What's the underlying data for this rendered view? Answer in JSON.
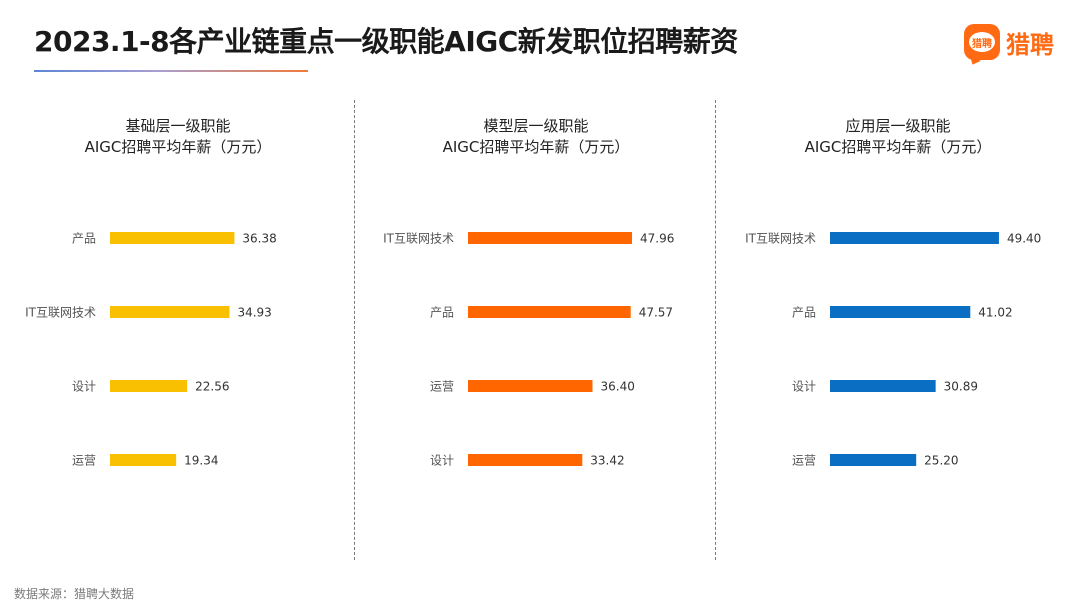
{
  "title": "2023.1-8各产业链重点一级职能AIGC新发职位招聘薪资",
  "brand": {
    "logo_text": "猎聘",
    "name": "猎聘",
    "color": "#ff6a13"
  },
  "source": "数据来源：猎聘大数据",
  "chart_data": [
    {
      "type": "bar",
      "orientation": "horizontal",
      "title_line1": "基础层一级职能",
      "title_line2": "AIGC招聘平均年薪（万元）",
      "color": "#f8c000",
      "categories": [
        "产品",
        "IT互联网技术",
        "设计",
        "运营"
      ],
      "values": [
        36.38,
        34.93,
        22.56,
        19.34
      ],
      "value_labels": [
        "36.38",
        "34.93",
        "22.56",
        "19.34"
      ],
      "grid": false,
      "legend": "none"
    },
    {
      "type": "bar",
      "orientation": "horizontal",
      "title_line1": "模型层一级职能",
      "title_line2": "AIGC招聘平均年薪（万元）",
      "color": "#ff6600",
      "categories": [
        "IT互联网技术",
        "产品",
        "运营",
        "设计"
      ],
      "values": [
        47.96,
        47.57,
        36.4,
        33.42
      ],
      "value_labels": [
        "47.96",
        "47.57",
        "36.40",
        "33.42"
      ],
      "grid": false,
      "legend": "none"
    },
    {
      "type": "bar",
      "orientation": "horizontal",
      "title_line1": "应用层一级职能",
      "title_line2": "AIGC招聘平均年薪（万元）",
      "color": "#0a6fc2",
      "categories": [
        "IT互联网技术",
        "产品",
        "设计",
        "运营"
      ],
      "values": [
        49.4,
        41.02,
        30.89,
        25.2
      ],
      "value_labels": [
        "49.40",
        "41.02",
        "30.89",
        "25.20"
      ],
      "grid": false,
      "legend": "none"
    }
  ]
}
